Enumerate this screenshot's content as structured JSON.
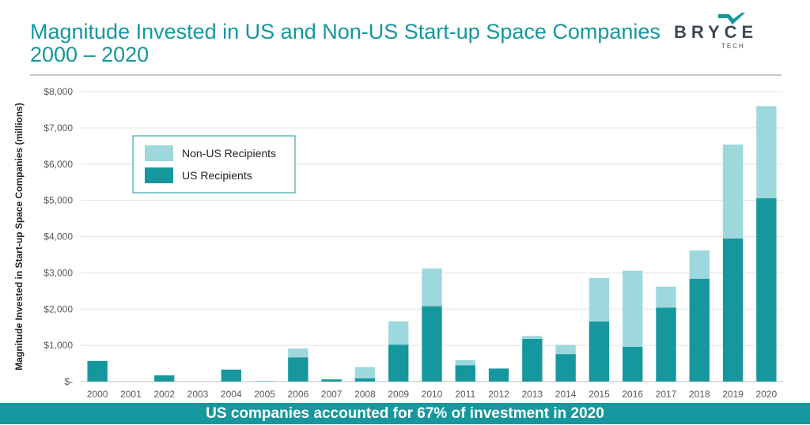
{
  "header": {
    "title_line1": "Magnitude Invested in US and Non-US Start-up Space Companies",
    "title_line2": "2000 – 2020"
  },
  "logo": {
    "wordmark": "BRYCE",
    "subtitle": "TECH",
    "icon": "checkmark-icon"
  },
  "colors": {
    "title": "#14979e",
    "us": "#16979e",
    "non_us": "#9dd8dd",
    "footer_bg": "#16979e",
    "gridline": "#e3e3e3"
  },
  "chart_data": {
    "type": "bar",
    "stacked": true,
    "title": "Magnitude Invested in US and Non-US Start-up Space Companies 2000 – 2020",
    "xlabel": "",
    "ylabel": "Magnitude Invested in Start-up Space Companies (millions)",
    "ylim": [
      0,
      8000
    ],
    "yticks": [
      0,
      1000,
      2000,
      3000,
      4000,
      5000,
      6000,
      7000,
      8000
    ],
    "ytick_labels": [
      "$-",
      "$1,000",
      "$2,000",
      "$3,000",
      "$4,000",
      "$5,000",
      "$6,000",
      "$7,000",
      "$8,000"
    ],
    "grid": true,
    "legend_position": "top-left",
    "categories": [
      "2000",
      "2001",
      "2002",
      "2003",
      "2004",
      "2005",
      "2006",
      "2007",
      "2008",
      "2009",
      "2010",
      "2011",
      "2012",
      "2013",
      "2014",
      "2015",
      "2016",
      "2017",
      "2018",
      "2019",
      "2020"
    ],
    "series": [
      {
        "name": "US Recipients",
        "values": [
          570,
          0,
          170,
          0,
          330,
          10,
          670,
          60,
          90,
          1020,
          2080,
          450,
          360,
          1180,
          760,
          1660,
          960,
          2040,
          2840,
          3950,
          5060
        ]
      },
      {
        "name": "Non-US Recipients",
        "values": [
          0,
          0,
          0,
          0,
          0,
          0,
          240,
          0,
          310,
          640,
          1040,
          140,
          0,
          80,
          250,
          1200,
          2100,
          580,
          780,
          2590,
          2540
        ]
      }
    ],
    "legend": [
      "Non-US Recipients",
      "US Recipients"
    ]
  },
  "footer": {
    "text": "US companies accounted for 67% of investment in 2020"
  }
}
